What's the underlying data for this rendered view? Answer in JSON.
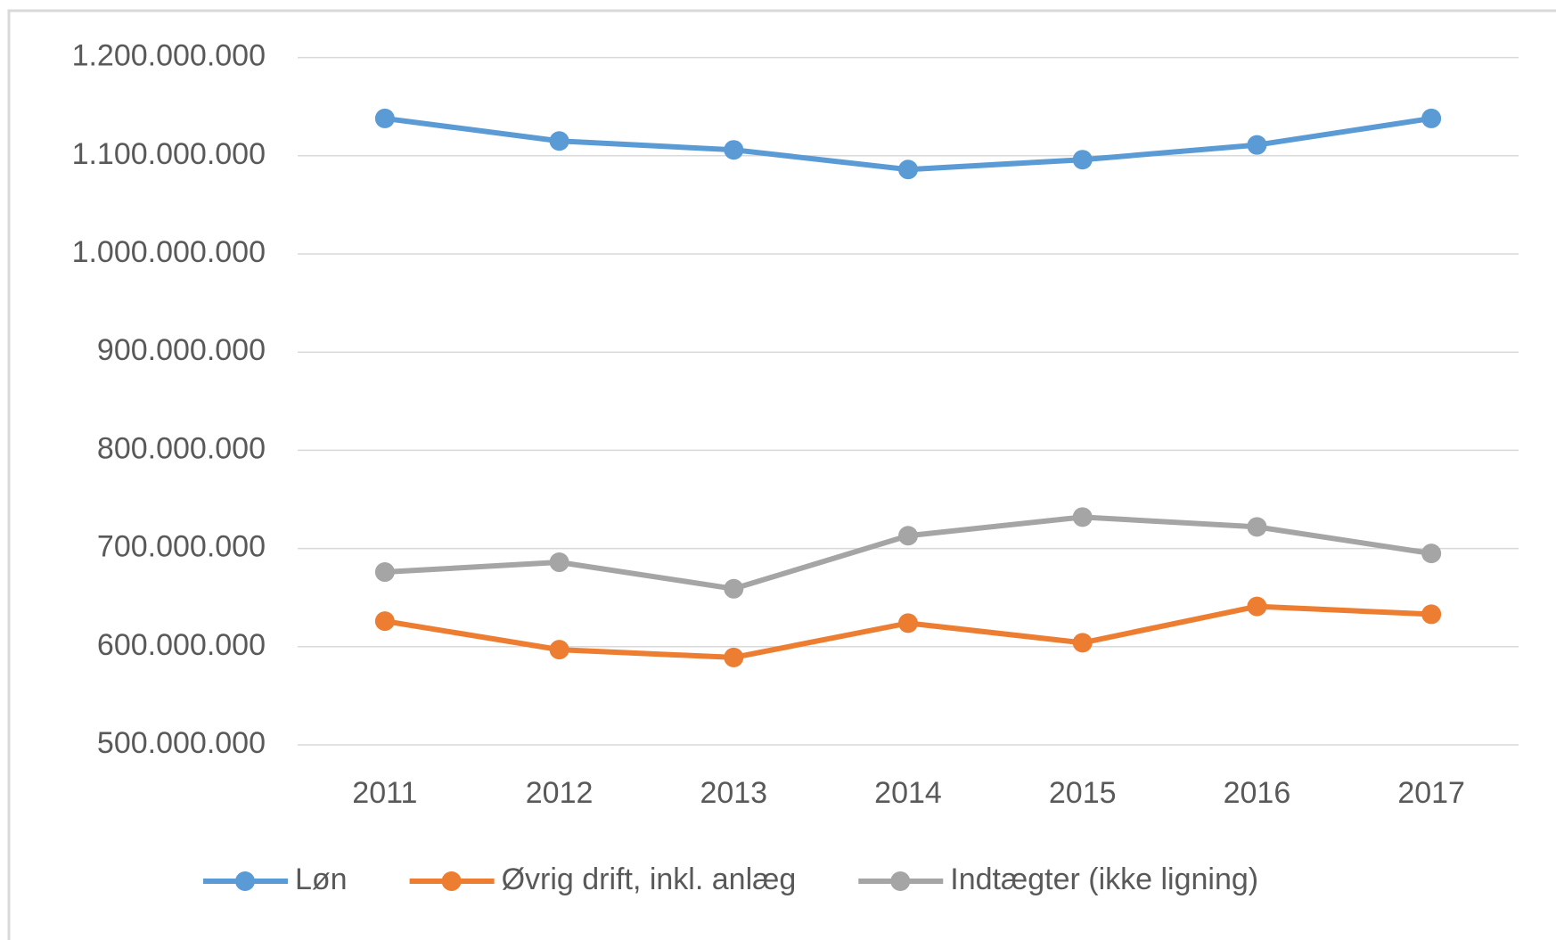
{
  "chart_data": {
    "type": "line",
    "categories": [
      "2011",
      "2012",
      "2013",
      "2014",
      "2015",
      "2016",
      "2017"
    ],
    "series": [
      {
        "name": "Løn",
        "color": "#5b9bd5",
        "values": [
          1138000000,
          1115000000,
          1106000000,
          1086000000,
          1096000000,
          1111000000,
          1138000000
        ]
      },
      {
        "name": "Øvrig drift, inkl. anlæg",
        "color": "#ed7d31",
        "values": [
          626000000,
          597000000,
          589000000,
          624000000,
          604000000,
          641000000,
          633000000
        ]
      },
      {
        "name": "Indtægter (ikke ligning)",
        "color": "#a5a5a5",
        "values": [
          676000000,
          686000000,
          659000000,
          713000000,
          732000000,
          722000000,
          695000000
        ]
      }
    ],
    "ylim": [
      500000000,
      1200000000
    ],
    "yticks": [
      {
        "value": 500000000,
        "label": "500.000.000"
      },
      {
        "value": 600000000,
        "label": "600.000.000"
      },
      {
        "value": 700000000,
        "label": "700.000.000"
      },
      {
        "value": 800000000,
        "label": "800.000.000"
      },
      {
        "value": 900000000,
        "label": "900.000.000"
      },
      {
        "value": 1000000000,
        "label": "1.000.000.000"
      },
      {
        "value": 1100000000,
        "label": "1.100.000.000"
      },
      {
        "value": 1200000000,
        "label": "1.200.000.000"
      }
    ],
    "grid": true,
    "legend": "bottom"
  }
}
